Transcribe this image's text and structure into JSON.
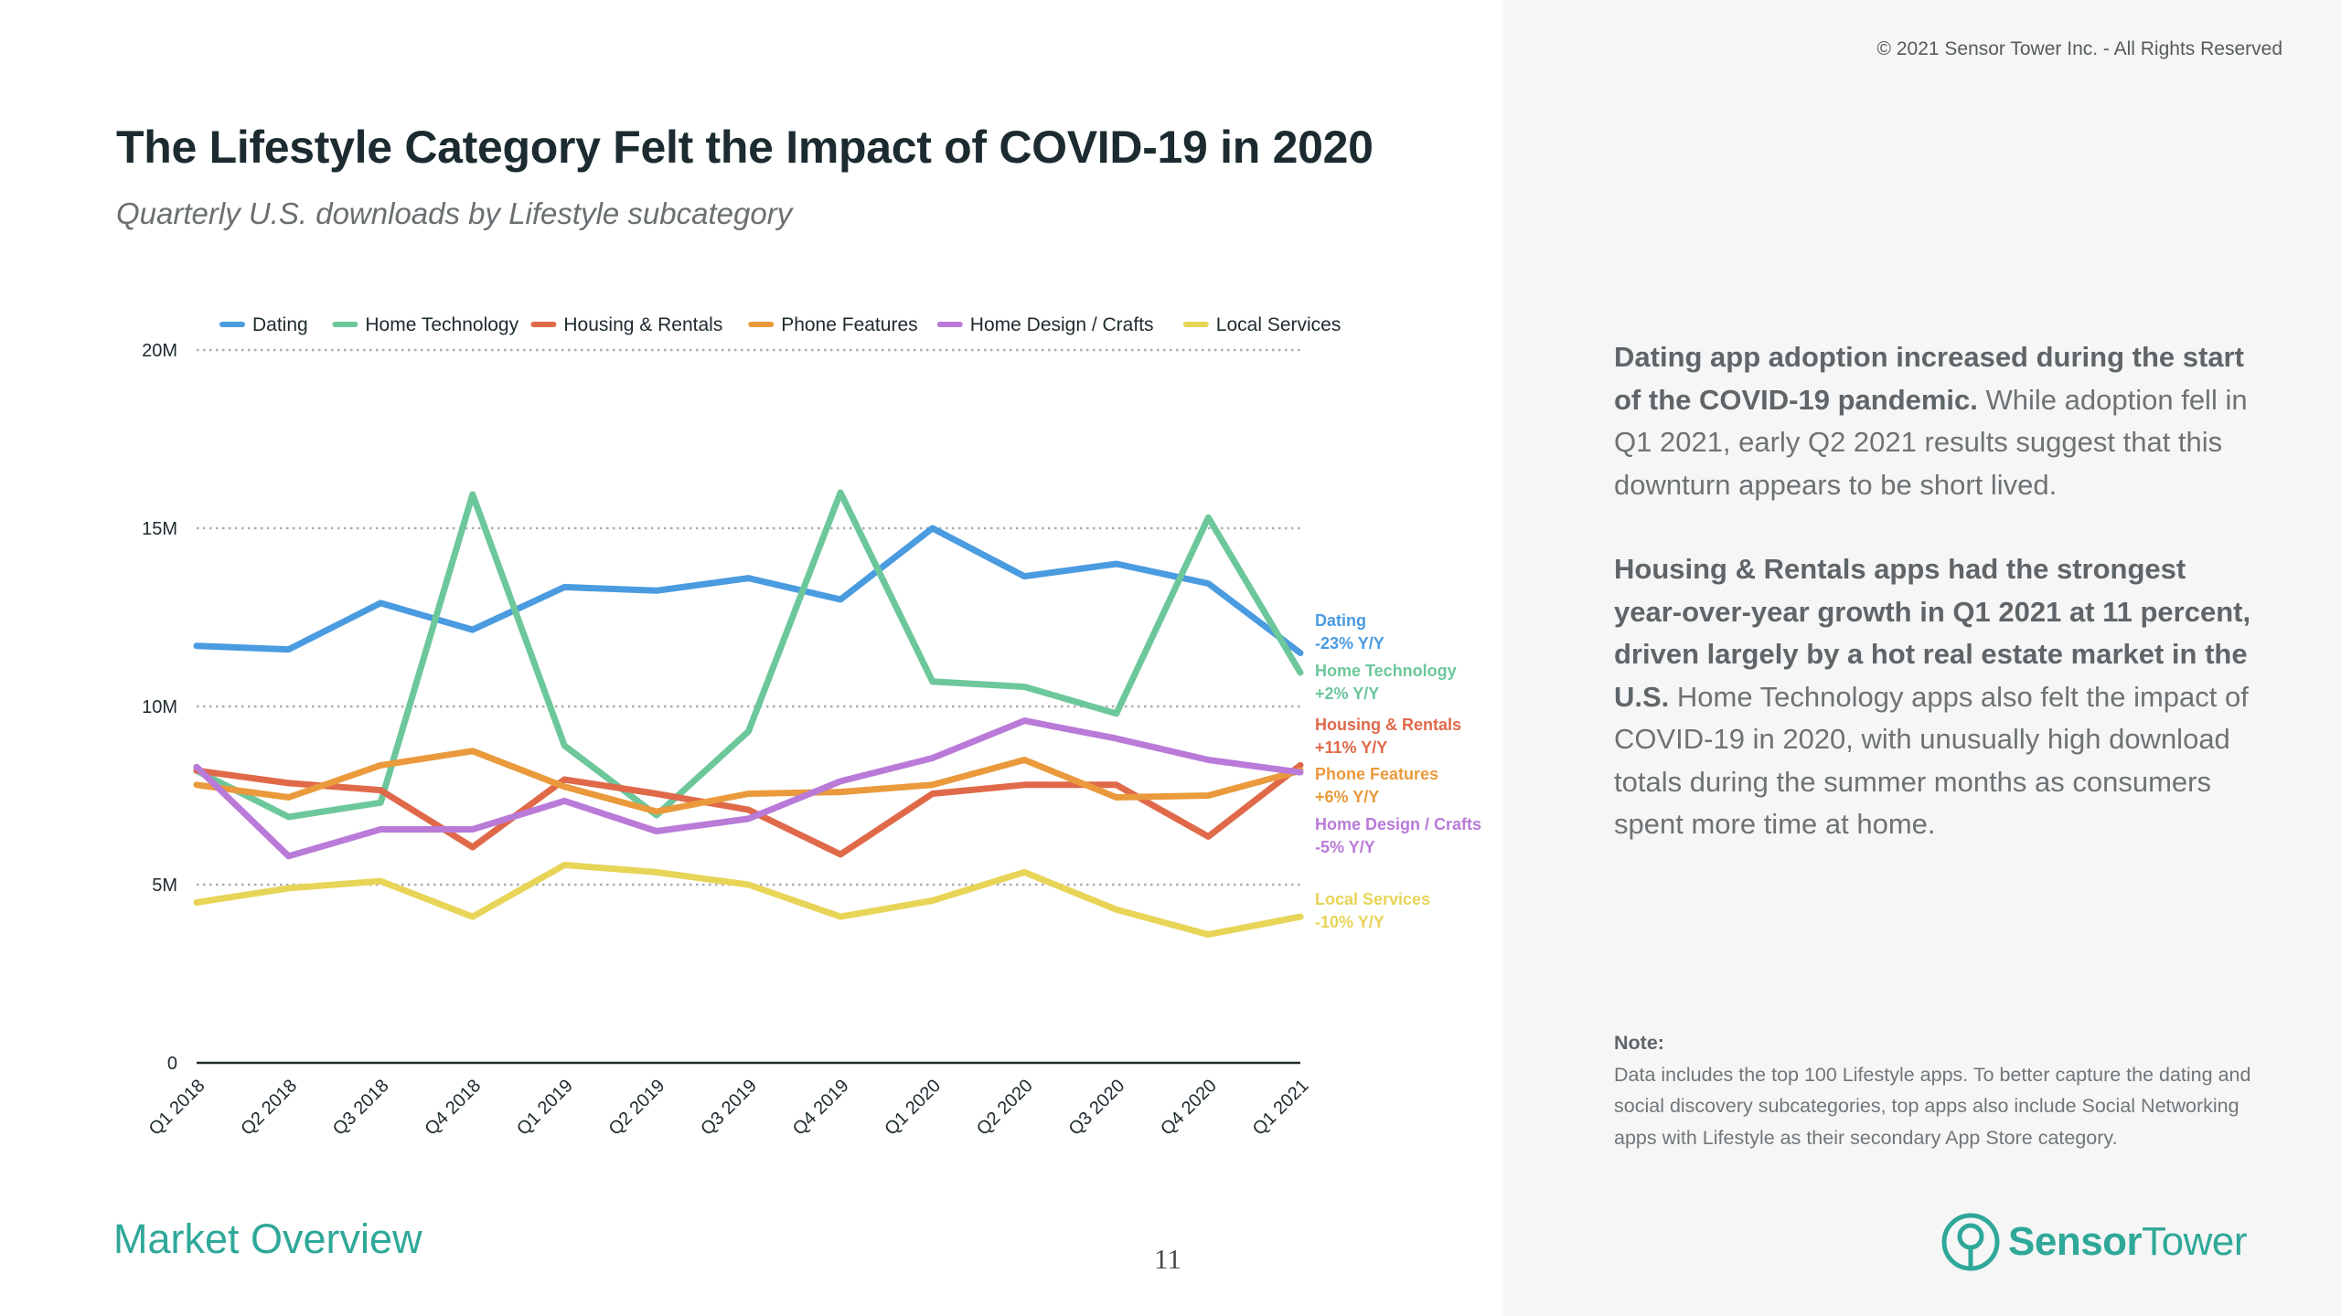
{
  "header": {
    "title": "The Lifestyle Category Felt the Impact of COVID-19 in 2020",
    "subtitle": "Quarterly U.S. downloads by Lifestyle subcategory",
    "copyright": "© 2021 Sensor Tower Inc. - All Rights Reserved"
  },
  "commentary": {
    "p1_bold": "Dating app adoption increased during the start of the COVID-19 pandemic.",
    "p1_rest": " While adoption fell in Q1 2021, early Q2 2021 results suggest that this downturn appears to be short lived.",
    "p2_bold": "Housing & Rentals apps had the strongest year-over-year growth in Q1 2021 at 11 percent, driven largely by a hot real estate market in the U.S.",
    "p2_rest": " Home Technology apps also felt the impact of COVID-19 in 2020, with unusually high download totals during the summer months as consumers spent more time at home."
  },
  "note": {
    "label": "Note:",
    "text": "Data includes the top 100 Lifestyle apps. To better capture the dating and social discovery subcategories, top apps also include Social Networking apps with Lifestyle as their secondary App Store category."
  },
  "footer": {
    "section": "Market Overview",
    "page_number": "11",
    "brand_sensor": "Sensor",
    "brand_tower": "Tower"
  },
  "colors": {
    "accent": "#2fa899",
    "dating": "#4a9be0",
    "home_technology": "#6cc79b",
    "housing_rentals": "#e0694a",
    "phone_features": "#ea9a3c",
    "home_design_crafts": "#b97ad8",
    "local_services": "#e8d456"
  },
  "chart_data": {
    "type": "line",
    "x": [
      "Q1 2018",
      "Q2 2018",
      "Q3 2018",
      "Q4 2018",
      "Q1 2019",
      "Q2 2019",
      "Q3 2019",
      "Q4 2019",
      "Q1 2020",
      "Q2 2020",
      "Q3 2020",
      "Q4 2020",
      "Q1 2021"
    ],
    "y_ticks": [
      {
        "value": 0,
        "label": "0"
      },
      {
        "value": 5,
        "label": "5M"
      },
      {
        "value": 10,
        "label": "10M"
      },
      {
        "value": 15,
        "label": "15M"
      },
      {
        "value": 20,
        "label": "20M"
      }
    ],
    "ylim": [
      0,
      20
    ],
    "y_unit": "M downloads",
    "grid": true,
    "legend_position": "top",
    "series": [
      {
        "name": "Dating",
        "color": "#4a9be0",
        "change": "-23% Y/Y",
        "values": [
          11.7,
          11.6,
          12.9,
          12.15,
          13.35,
          13.25,
          13.6,
          13.0,
          15.0,
          13.65,
          14.0,
          13.45,
          11.5
        ]
      },
      {
        "name": "Home Technology",
        "color": "#6cc79b",
        "change": "+2% Y/Y",
        "values": [
          8.2,
          6.9,
          7.3,
          15.95,
          8.9,
          6.95,
          9.3,
          16.0,
          10.7,
          10.55,
          9.8,
          15.3,
          10.95
        ]
      },
      {
        "name": "Housing & Rentals",
        "color": "#e0694a",
        "change": "+11% Y/Y",
        "values": [
          8.2,
          7.85,
          7.65,
          6.05,
          7.95,
          7.55,
          7.1,
          5.85,
          7.55,
          7.8,
          7.8,
          6.35,
          8.35
        ]
      },
      {
        "name": "Phone Features",
        "color": "#ea9a3c",
        "change": "+6% Y/Y",
        "values": [
          7.8,
          7.45,
          8.35,
          8.75,
          7.75,
          7.05,
          7.55,
          7.6,
          7.8,
          8.5,
          7.45,
          7.5,
          8.2
        ]
      },
      {
        "name": "Home Design / Crafts",
        "color": "#b97ad8",
        "change": "-5% Y/Y",
        "values": [
          8.3,
          5.8,
          6.55,
          6.55,
          7.35,
          6.5,
          6.85,
          7.9,
          8.55,
          9.6,
          9.1,
          8.5,
          8.15
        ]
      },
      {
        "name": "Local Services",
        "color": "#e8d456",
        "change": "-10% Y/Y",
        "values": [
          4.5,
          4.9,
          5.1,
          4.1,
          5.55,
          5.35,
          5.0,
          4.1,
          4.55,
          5.35,
          4.3,
          3.6,
          4.1
        ]
      }
    ]
  }
}
